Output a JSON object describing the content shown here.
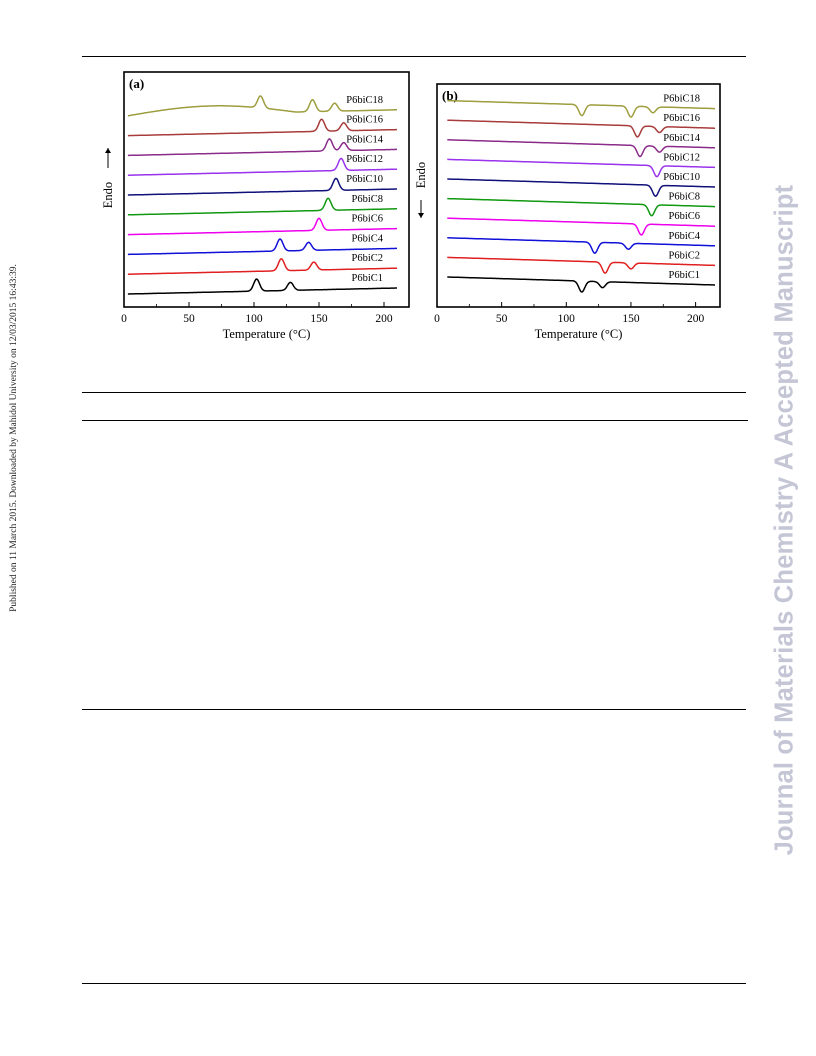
{
  "sidebar_text": "Published on 11 March 2015. Downloaded by Mahidol University on 12/03/2015 16:43:39.",
  "watermark": "Journal of Materials Chemistry A Accepted Manuscript",
  "panels": [
    {
      "label": "(a)",
      "ylabel": "Endo",
      "xlabel": "Temperature (°C)"
    },
    {
      "label": "(b)",
      "ylabel": "Endo",
      "xlabel": "Temperature (°C)"
    }
  ],
  "chart_data": [
    {
      "type": "line",
      "label": "(a)",
      "xlabel": "Temperature (°C)",
      "ylabel": "Endo",
      "xlim": [
        0,
        210
      ],
      "xticks": [
        0,
        50,
        100,
        150,
        200
      ],
      "grid": false,
      "series": [
        {
          "name": "P6biC1",
          "color": "#000000",
          "peaks": [
            102,
            128
          ]
        },
        {
          "name": "P6biC2",
          "color": "#e02020",
          "peaks": [
            121,
            146
          ]
        },
        {
          "name": "P6biC4",
          "color": "#1010d8",
          "peaks": [
            120,
            142
          ]
        },
        {
          "name": "P6biC6",
          "color": "#ee00ee",
          "peaks": [
            150
          ]
        },
        {
          "name": "P6biC8",
          "color": "#119911",
          "peaks": [
            157
          ]
        },
        {
          "name": "P6biC10",
          "color": "#10107a",
          "peaks": [
            163
          ]
        },
        {
          "name": "P6biC12",
          "color": "#9933ee",
          "peaks": [
            167
          ]
        },
        {
          "name": "P6biC14",
          "color": "#8b2c8b",
          "peaks": [
            158,
            169
          ]
        },
        {
          "name": "P6biC16",
          "color": "#a83c3c",
          "peaks": [
            152,
            169
          ]
        },
        {
          "name": "P6biC18",
          "color": "#9e9e3e",
          "peaks": [
            105,
            145,
            162
          ]
        }
      ]
    },
    {
      "type": "line",
      "label": "(b)",
      "xlabel": "Temperature (°C)",
      "ylabel": "Endo",
      "xlim": [
        0,
        215
      ],
      "xticks": [
        0,
        50,
        100,
        150,
        200
      ],
      "grid": false,
      "series": [
        {
          "name": "P6biC1",
          "color": "#000000",
          "peaks": [
            112,
            128
          ]
        },
        {
          "name": "P6biC2",
          "color": "#e02020",
          "peaks": [
            130,
            150
          ]
        },
        {
          "name": "P6biC4",
          "color": "#1010d8",
          "peaks": [
            122,
            148
          ]
        },
        {
          "name": "P6biC6",
          "color": "#ee00ee",
          "peaks": [
            158
          ]
        },
        {
          "name": "P6biC8",
          "color": "#119911",
          "peaks": [
            166
          ]
        },
        {
          "name": "P6biC10",
          "color": "#10107a",
          "peaks": [
            169
          ]
        },
        {
          "name": "P6biC12",
          "color": "#9933ee",
          "peaks": [
            170
          ]
        },
        {
          "name": "P6biC14",
          "color": "#8b2c8b",
          "peaks": [
            157,
            172
          ]
        },
        {
          "name": "P6biC16",
          "color": "#a83c3c",
          "peaks": [
            155,
            172
          ]
        },
        {
          "name": "P6biC18",
          "color": "#9e9e3e",
          "peaks": [
            112,
            150,
            167
          ]
        }
      ]
    }
  ]
}
